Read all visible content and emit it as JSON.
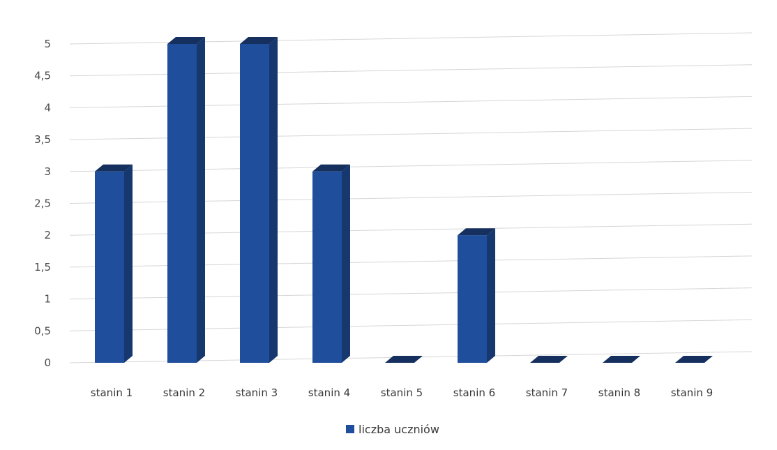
{
  "chart_data": {
    "type": "bar",
    "style": "3d-column",
    "categories": [
      "stanin 1",
      "stanin 2",
      "stanin 3",
      "stanin 4",
      "stanin 5",
      "stanin 6",
      "stanin 7",
      "stanin 8",
      "stanin 9"
    ],
    "series": [
      {
        "name": "liczba uczniów",
        "values": [
          3,
          5,
          5,
          3,
          0,
          2,
          0,
          0,
          0
        ],
        "color": "#1f4e9c"
      }
    ],
    "y_ticks": [
      "0",
      "0,5",
      "1",
      "1,5",
      "2",
      "2,5",
      "3",
      "3,5",
      "4",
      "4,5",
      "5"
    ],
    "ylim": [
      0,
      5
    ],
    "title": "",
    "xlabel": "",
    "ylabel": "",
    "grid": true,
    "legend_position": "bottom"
  }
}
